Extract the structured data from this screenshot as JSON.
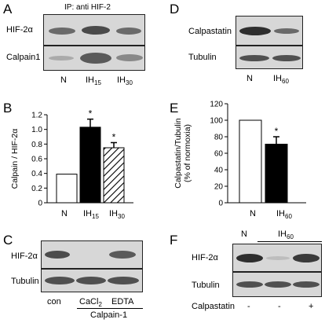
{
  "panels": {
    "A": {
      "letter": "A",
      "ip_label": "IP: anti HIF-2",
      "rows": [
        "HIF-2α",
        "Calpain1"
      ],
      "lanes": [
        "N",
        "IH",
        "IH"
      ],
      "lane_subs": [
        "",
        "15",
        "30"
      ]
    },
    "B": {
      "letter": "B",
      "ylabel": "Calpain / HIF-2α",
      "yticks": [
        "0",
        "0.2",
        "0.4",
        "0.6",
        "0.8",
        "1.0",
        "1.2"
      ],
      "lanes": [
        "N",
        "IH",
        "IH"
      ],
      "lane_subs": [
        "",
        "15",
        "30"
      ],
      "sig": [
        "",
        "*",
        "*"
      ]
    },
    "C": {
      "letter": "C",
      "rows": [
        "HIF-2α",
        "Tubulin"
      ],
      "lanes": [
        "con",
        "CaCl",
        "EDTA"
      ],
      "cacl_sub": "2",
      "group_label": "Calpain-1"
    },
    "D": {
      "letter": "D",
      "rows": [
        "Calpastatin",
        "Tubulin"
      ],
      "lanes": [
        "N",
        "IH"
      ],
      "lane_subs": [
        "",
        "60"
      ]
    },
    "E": {
      "letter": "E",
      "ylabel_line1": "Calpastatin/Tubulin",
      "ylabel_line2": "(% of normoxia)",
      "yticks": [
        "0",
        "20",
        "40",
        "60",
        "80",
        "100",
        "120"
      ],
      "lanes": [
        "N",
        "IH"
      ],
      "lane_subs": [
        "",
        "60"
      ],
      "sig": [
        "",
        "*"
      ]
    },
    "F": {
      "letter": "F",
      "top_labels": [
        "N",
        "IH"
      ],
      "top_sub": "60",
      "rows": [
        "HIF-2α",
        "Tubulin"
      ],
      "row3_label": "Calpastatin",
      "row3_values": [
        "-",
        "-",
        "+"
      ]
    }
  },
  "chart_data": [
    {
      "type": "bar",
      "panel": "B",
      "categories": [
        "N",
        "IH15",
        "IH30"
      ],
      "values": [
        0.39,
        1.03,
        0.75
      ],
      "errors": [
        0,
        0.11,
        0.07
      ],
      "fills": [
        "white",
        "black",
        "hatched"
      ],
      "ylabel": "Calpain / HIF-2α",
      "ylim": [
        0,
        1.2
      ]
    },
    {
      "type": "bar",
      "panel": "E",
      "categories": [
        "N",
        "IH60"
      ],
      "values": [
        100,
        71
      ],
      "errors": [
        0,
        9
      ],
      "fills": [
        "white",
        "black"
      ],
      "ylabel": "Calpastatin/Tubulin (% of normoxia)",
      "ylim": [
        0,
        120
      ]
    }
  ]
}
